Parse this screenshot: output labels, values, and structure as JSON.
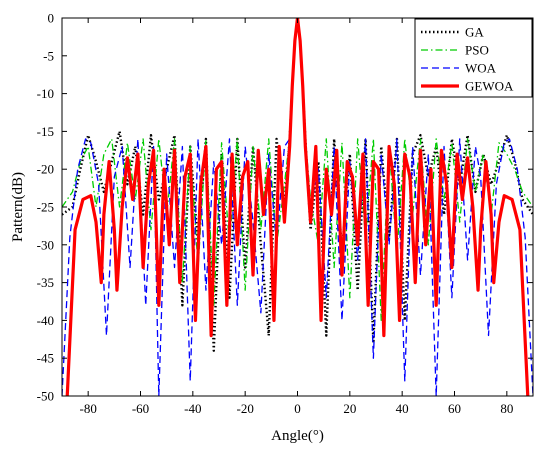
{
  "chart_data": {
    "type": "line",
    "title": "",
    "xlabel": "Angle(°)",
    "ylabel": "Pattern(dB)",
    "xlim": [
      -90,
      90
    ],
    "ylim": [
      -50,
      0
    ],
    "xticks": [
      -80,
      -60,
      -40,
      -20,
      0,
      20,
      40,
      60,
      80
    ],
    "yticks": [
      0,
      -5,
      -10,
      -15,
      -20,
      -25,
      -30,
      -35,
      -40,
      -45,
      -50
    ],
    "grid": false,
    "legend_position": "top-right",
    "series": [
      {
        "name": "GA",
        "color": "#000000",
        "style": "dotted",
        "x": [
          -90,
          -86,
          -83,
          -80,
          -77,
          -74,
          -71,
          -68,
          -65,
          -62,
          -59,
          -56,
          -53,
          -50,
          -47,
          -44,
          -41,
          -38,
          -35,
          -32,
          -29,
          -26,
          -23,
          -20,
          -17,
          -14,
          -11,
          -8,
          -5,
          -3,
          -2,
          -1,
          0,
          1,
          2,
          3,
          5,
          8,
          11,
          14,
          17,
          20,
          23,
          26,
          29,
          32,
          35,
          38,
          41,
          44,
          47,
          50,
          53,
          56,
          59,
          62,
          65,
          68,
          71,
          74,
          77,
          80,
          83,
          86,
          90
        ],
        "y": [
          -26,
          -25,
          -20,
          -15.5,
          -19,
          -23,
          -19,
          -15,
          -22,
          -17,
          -26,
          -15.5,
          -24,
          -20,
          -15.5,
          -38,
          -17,
          -30,
          -16,
          -44,
          -18,
          -37,
          -16,
          -33,
          -17,
          -30,
          -42,
          -16,
          -25,
          -16,
          -9,
          -3,
          0,
          -3,
          -9,
          -16,
          -28,
          -19,
          -42,
          -16,
          -31,
          -18,
          -36,
          -16,
          -43,
          -17,
          -29,
          -16,
          -40,
          -18,
          -15.5,
          -21,
          -17,
          -26,
          -16,
          -22,
          -15.5,
          -23,
          -18,
          -22,
          -19,
          -15.5,
          -19,
          -24,
          -26
        ]
      },
      {
        "name": "PSO",
        "color": "#00cc00",
        "style": "dashdot",
        "x": [
          -90,
          -86,
          -83,
          -80,
          -77,
          -74,
          -71,
          -68,
          -65,
          -62,
          -59,
          -56,
          -53,
          -50,
          -47,
          -44,
          -41,
          -38,
          -35,
          -32,
          -29,
          -26,
          -23,
          -20,
          -17,
          -14,
          -11,
          -8,
          -5,
          -3,
          -2,
          -1,
          0,
          1,
          2,
          3,
          5,
          8,
          11,
          14,
          17,
          20,
          23,
          26,
          29,
          32,
          35,
          38,
          41,
          44,
          47,
          50,
          53,
          56,
          59,
          62,
          65,
          68,
          71,
          74,
          77,
          80,
          83,
          86,
          90
        ],
        "y": [
          -25,
          -23,
          -19,
          -17,
          -25,
          -18,
          -16,
          -25,
          -16.5,
          -24,
          -16,
          -28,
          -16,
          -26,
          -16,
          -35,
          -17,
          -33,
          -16,
          -38,
          -16.5,
          -30,
          -16,
          -36,
          -17,
          -28,
          -16,
          -30,
          -22,
          -16,
          -9,
          -3,
          0,
          -3,
          -9,
          -16,
          -24,
          -30,
          -16,
          -33,
          -16.5,
          -37,
          -16,
          -29,
          -16,
          -40,
          -17,
          -31,
          -16,
          -26,
          -16,
          -30,
          -16,
          -24,
          -16.5,
          -27,
          -16,
          -23,
          -18,
          -26,
          -16.5,
          -18,
          -20,
          -23,
          -25
        ]
      },
      {
        "name": "WOA",
        "color": "#0000ff",
        "style": "dashed",
        "x": [
          -90,
          -87,
          -84,
          -81,
          -79,
          -76,
          -73,
          -70,
          -67,
          -64,
          -61,
          -58,
          -55,
          -53,
          -50,
          -47,
          -44,
          -41,
          -38,
          -35,
          -32,
          -29,
          -26,
          -23,
          -20,
          -17,
          -14,
          -11,
          -8,
          -5,
          -3,
          -2,
          -1,
          0,
          1,
          2,
          3,
          5,
          8,
          11,
          14,
          17,
          20,
          23,
          26,
          29,
          32,
          35,
          38,
          41,
          44,
          47,
          50,
          53,
          56,
          59,
          62,
          65,
          68,
          70,
          73,
          76,
          79,
          81,
          84,
          87,
          90
        ],
        "y": [
          -50,
          -29,
          -20,
          -16,
          -16.5,
          -22,
          -42,
          -21,
          -17,
          -33,
          -16,
          -38,
          -17,
          -50,
          -18,
          -33,
          -17,
          -48,
          -16,
          -36,
          -19,
          -30,
          -16,
          -38,
          -17,
          -27,
          -39,
          -18,
          -30,
          -17,
          -16,
          -9,
          -3,
          0,
          -3,
          -9,
          -16,
          -25,
          -20,
          -37,
          -17,
          -40,
          -19,
          -32,
          -16,
          -45,
          -18,
          -30,
          -16,
          -48,
          -17,
          -34,
          -18,
          -50,
          -17,
          -37,
          -16,
          -32,
          -17,
          -21,
          -42,
          -22,
          -16.5,
          -16,
          -20,
          -29,
          -50
        ]
      },
      {
        "name": "GEWOA",
        "color": "#ff0000",
        "style": "solid",
        "x": [
          -88,
          -85,
          -82,
          -79,
          -77,
          -75,
          -74,
          -72,
          -70,
          -69,
          -67,
          -65,
          -63,
          -61,
          -59,
          -57,
          -55,
          -53,
          -51,
          -49,
          -47,
          -45,
          -43,
          -41,
          -39,
          -37,
          -35,
          -33,
          -31,
          -29,
          -27,
          -25,
          -23,
          -21,
          -19,
          -17,
          -15,
          -13,
          -11,
          -9,
          -7,
          -5,
          -3,
          -2,
          -1,
          0,
          1,
          2,
          3,
          5,
          7,
          9,
          11,
          13,
          15,
          17,
          19,
          21,
          23,
          25,
          27,
          29,
          31,
          33,
          35,
          37,
          39,
          41,
          43,
          45,
          47,
          49,
          51,
          53,
          55,
          57,
          59,
          61,
          63,
          65,
          67,
          69,
          70,
          72,
          74,
          75,
          77,
          79,
          82,
          85,
          88
        ],
        "y": [
          -50,
          -28,
          -24,
          -23.5,
          -27,
          -35,
          -26,
          -19,
          -28,
          -36,
          -25,
          -18.5,
          -24,
          -18,
          -33,
          -22,
          -17.5,
          -38,
          -20,
          -30,
          -17.5,
          -35,
          -21,
          -18,
          -40,
          -22,
          -17,
          -42,
          -20,
          -19,
          -38,
          -18,
          -30,
          -21,
          -19,
          -34,
          -17.5,
          -26,
          -20,
          -40,
          -17,
          -27,
          -17,
          -9,
          -3,
          0,
          -3,
          -9,
          -17,
          -27,
          -17,
          -40,
          -20,
          -26,
          -17.5,
          -34,
          -19,
          -21,
          -30,
          -18,
          -38,
          -19,
          -20,
          -42,
          -17,
          -22,
          -40,
          -18,
          -21,
          -35,
          -17.5,
          -30,
          -20,
          -38,
          -17.5,
          -22,
          -33,
          -18,
          -24,
          -18.5,
          -25,
          -36,
          -28,
          -19,
          -26,
          -35,
          -27,
          -23.5,
          -24,
          -28,
          -50
        ]
      }
    ]
  }
}
